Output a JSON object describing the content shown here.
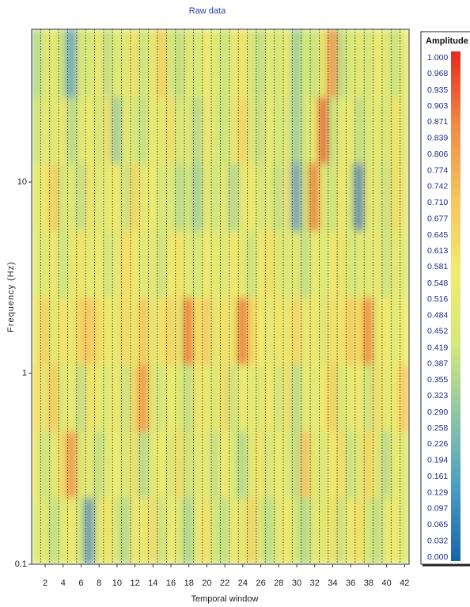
{
  "chart_data": {
    "type": "heatmap",
    "title": "Raw data",
    "x_label": "Temporal window",
    "y_label": "Frequency (Hz)",
    "colorbar_title": "Amplitude",
    "x": [
      1,
      2,
      3,
      4,
      5,
      6,
      7,
      8,
      9,
      10,
      11,
      12,
      13,
      14,
      15,
      16,
      17,
      18,
      19,
      20,
      21,
      22,
      23,
      24,
      25,
      26,
      27,
      28,
      29,
      30,
      31,
      32,
      33,
      34,
      35,
      36,
      37,
      38,
      39,
      40,
      41,
      42
    ],
    "xlim": [
      0.5,
      42.5
    ],
    "xticks": [
      2,
      4,
      6,
      8,
      10,
      12,
      14,
      16,
      18,
      20,
      22,
      24,
      26,
      28,
      30,
      32,
      34,
      36,
      38,
      40,
      42
    ],
    "y_scale": "log",
    "ylim": [
      0.1,
      63
    ],
    "yticks": [
      0.1,
      1,
      10
    ],
    "y_edges": [
      0.1,
      0.224,
      0.5,
      1.12,
      2.5,
      5.6,
      12.6,
      28,
      63
    ],
    "z": [
      [
        0.45,
        0.52,
        0.38,
        0.48,
        0.55,
        0.42,
        0.1,
        0.5,
        0.6,
        0.44,
        0.35,
        0.58,
        0.48,
        0.62,
        0.4,
        0.55,
        0.47,
        0.33,
        0.52,
        0.6,
        0.42,
        0.38,
        0.55,
        0.48,
        0.66,
        0.45,
        0.37,
        0.5,
        0.58,
        0.42,
        0.35,
        0.52,
        0.46,
        0.6,
        0.4,
        0.55,
        0.62,
        0.44,
        0.38,
        0.5,
        0.56,
        0.45
      ],
      [
        0.58,
        0.4,
        0.5,
        0.62,
        0.85,
        0.45,
        0.52,
        0.38,
        0.48,
        0.56,
        0.42,
        0.6,
        0.35,
        0.5,
        0.55,
        0.44,
        0.62,
        0.4,
        0.48,
        0.53,
        0.38,
        0.57,
        0.46,
        0.35,
        0.5,
        0.6,
        0.42,
        0.55,
        0.47,
        0.38,
        0.72,
        0.5,
        0.44,
        0.58,
        0.62,
        0.4,
        0.48,
        0.66,
        0.52,
        0.36,
        0.55,
        0.45
      ],
      [
        0.62,
        0.5,
        0.7,
        0.44,
        0.55,
        0.38,
        0.6,
        0.52,
        0.45,
        0.58,
        0.4,
        0.62,
        0.85,
        0.5,
        0.42,
        0.55,
        0.48,
        0.38,
        0.6,
        0.52,
        0.45,
        0.63,
        0.4,
        0.55,
        0.5,
        0.46,
        0.58,
        0.42,
        0.6,
        0.36,
        0.52,
        0.48,
        0.55,
        0.68,
        0.44,
        0.5,
        0.58,
        0.4,
        0.62,
        0.48,
        0.55,
        0.7
      ],
      [
        0.55,
        0.68,
        0.48,
        0.6,
        0.52,
        0.66,
        0.7,
        0.62,
        0.58,
        0.5,
        0.64,
        0.55,
        0.72,
        0.48,
        0.6,
        0.66,
        0.52,
        0.92,
        0.58,
        0.7,
        0.5,
        0.62,
        0.55,
        0.9,
        0.64,
        0.58,
        0.48,
        0.6,
        0.52,
        0.66,
        0.5,
        0.58,
        0.45,
        0.62,
        0.55,
        0.7,
        0.6,
        0.88,
        0.52,
        0.58,
        0.48,
        0.55
      ],
      [
        0.5,
        0.45,
        0.58,
        0.4,
        0.52,
        0.6,
        0.48,
        0.55,
        0.42,
        0.5,
        0.62,
        0.58,
        0.45,
        0.52,
        0.4,
        0.55,
        0.6,
        0.48,
        0.42,
        0.56,
        0.5,
        0.45,
        0.58,
        0.52,
        0.4,
        0.55,
        0.62,
        0.48,
        0.44,
        0.5,
        0.38,
        0.55,
        0.45,
        0.52,
        0.6,
        0.42,
        0.5,
        0.46,
        0.55,
        0.4,
        0.52,
        0.48
      ],
      [
        0.48,
        0.55,
        0.68,
        0.42,
        0.5,
        0.38,
        0.6,
        0.45,
        0.52,
        0.58,
        0.4,
        0.65,
        0.48,
        0.55,
        0.42,
        0.5,
        0.36,
        0.45,
        0.3,
        0.55,
        0.4,
        0.52,
        0.35,
        0.48,
        0.58,
        0.42,
        0.5,
        0.38,
        0.55,
        0.12,
        0.45,
        0.9,
        0.5,
        0.4,
        0.58,
        0.45,
        0.05,
        0.52,
        0.48,
        0.4,
        0.62,
        0.5
      ],
      [
        0.4,
        0.52,
        0.45,
        0.58,
        0.35,
        0.48,
        0.55,
        0.42,
        0.6,
        0.3,
        0.5,
        0.45,
        0.38,
        0.55,
        0.48,
        0.62,
        0.42,
        0.5,
        0.35,
        0.58,
        0.45,
        0.4,
        0.52,
        0.66,
        0.48,
        0.38,
        0.55,
        0.42,
        0.5,
        0.3,
        0.45,
        0.52,
        0.95,
        0.4,
        0.48,
        0.55,
        0.38,
        0.45,
        0.52,
        0.42,
        0.6,
        0.48
      ],
      [
        0.35,
        0.45,
        0.52,
        0.4,
        0.15,
        0.48,
        0.42,
        0.55,
        0.38,
        0.5,
        0.45,
        0.6,
        0.4,
        0.52,
        0.68,
        0.45,
        0.38,
        0.5,
        0.42,
        0.55,
        0.48,
        0.4,
        0.52,
        0.6,
        0.45,
        0.38,
        0.5,
        0.42,
        0.55,
        0.3,
        0.45,
        0.4,
        0.52,
        0.85,
        0.38,
        0.45,
        0.5,
        0.42,
        0.55,
        0.48,
        0.4,
        0.52
      ]
    ],
    "zlim": [
      0,
      1
    ],
    "colormap": [
      "#1566a8",
      "#4b9cc4",
      "#8cc8a4",
      "#d6e87a",
      "#f2ea6e",
      "#f5c35e",
      "#f08a46",
      "#e42a1c"
    ],
    "colorbar_ticks": [
      {
        "value": 1,
        "label": "1.000"
      },
      {
        "value": 0.968,
        "label": "0.968"
      },
      {
        "value": 0.935,
        "label": "0.935"
      },
      {
        "value": 0.903,
        "label": "0.903"
      },
      {
        "value": 0.871,
        "label": "0.871"
      },
      {
        "value": 0.839,
        "label": "0.839"
      },
      {
        "value": 0.806,
        "label": "0.806"
      },
      {
        "value": 0.774,
        "label": "0.774"
      },
      {
        "value": 0.742,
        "label": "0.742"
      },
      {
        "value": 0.71,
        "label": "0.710"
      },
      {
        "value": 0.677,
        "label": "0.677"
      },
      {
        "value": 0.645,
        "label": "0.645"
      },
      {
        "value": 0.613,
        "label": "0.613"
      },
      {
        "value": 0.581,
        "label": "0.581"
      },
      {
        "value": 0.548,
        "label": "0.548"
      },
      {
        "value": 0.516,
        "label": "0.516"
      },
      {
        "value": 0.484,
        "label": "0.484"
      },
      {
        "value": 0.452,
        "label": "0.452"
      },
      {
        "value": 0.419,
        "label": "0.419"
      },
      {
        "value": 0.387,
        "label": "0.387"
      },
      {
        "value": 0.355,
        "label": "0.355"
      },
      {
        "value": 0.323,
        "label": "0.323"
      },
      {
        "value": 0.29,
        "label": "0.290"
      },
      {
        "value": 0.258,
        "label": "0.258"
      },
      {
        "value": 0.226,
        "label": "0.226"
      },
      {
        "value": 0.194,
        "label": "0.194"
      },
      {
        "value": 0.161,
        "label": "0.161"
      },
      {
        "value": 0.129,
        "label": "0.129"
      },
      {
        "value": 0.097,
        "label": "0.097"
      },
      {
        "value": 0.065,
        "label": "0.065"
      },
      {
        "value": 0.032,
        "label": "0.032"
      },
      {
        "value": 0,
        "label": "0.000"
      }
    ]
  }
}
